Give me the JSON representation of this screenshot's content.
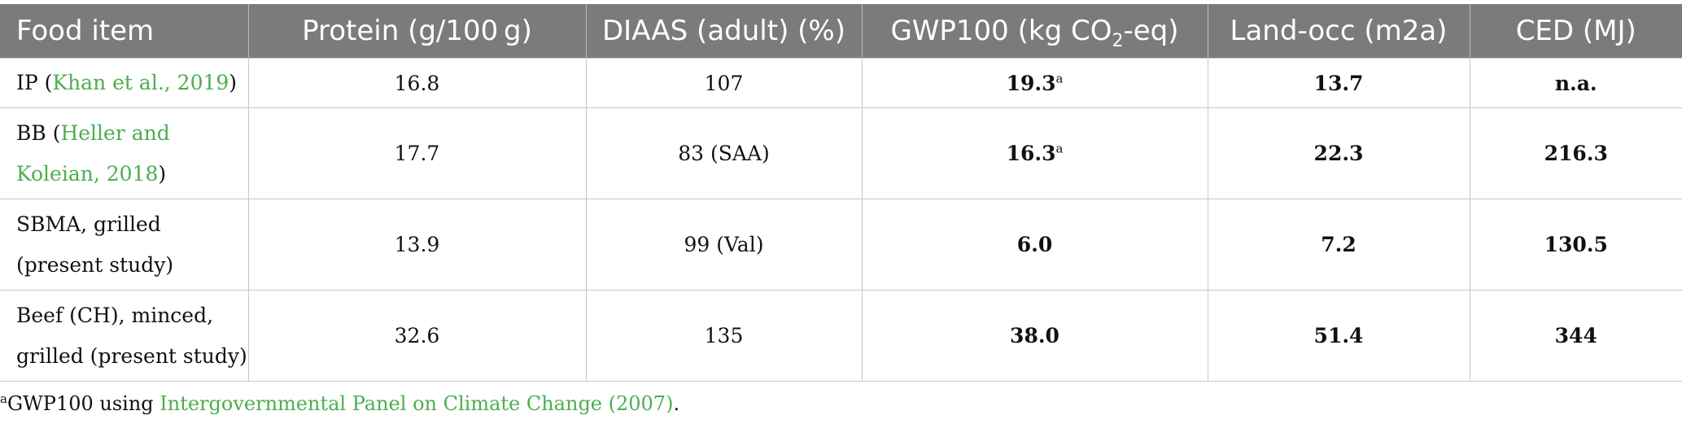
{
  "columns": {
    "food_item": "Food item",
    "protein": "Protein (g/100 g)",
    "diaas": "DIAAS (adult) (%)",
    "gwp_prefix": "GWP100 (kg CO",
    "gwp_sub": "2",
    "gwp_suffix": "-eq)",
    "land": "Land-occ (m2a)",
    "ced": "CED (MJ)"
  },
  "rows": [
    {
      "food_lines": [
        "IP (",
        "Khan et al., 2019",
        ")"
      ],
      "protein": "16.8",
      "diaas": "107",
      "gwp": "19.3",
      "gwp_note": "a",
      "land": "13.7",
      "ced": "n.a."
    },
    {
      "food_lines": [
        "BB (",
        "Heller and Koleian, 2018",
        ")"
      ],
      "protein": "17.7",
      "diaas": "83 (SAA)",
      "gwp": "16.3",
      "gwp_note": "a",
      "land": "22.3",
      "ced": "216.3"
    },
    {
      "food_line1": "SBMA, grilled",
      "food_line2": "(present study)",
      "protein": "13.9",
      "diaas": "99 (Val)",
      "gwp": "6.0",
      "land": "7.2",
      "ced": "130.5"
    },
    {
      "food_line1": "Beef (CH), minced,",
      "food_line2": "grilled (present study)",
      "protein": "32.6",
      "diaas": "135",
      "gwp": "38.0",
      "land": "51.4",
      "ced": "344"
    }
  ],
  "footnote": {
    "marker": "a",
    "text": "GWP100 using ",
    "link": "Intergovernmental Panel on Climate Change (2007)",
    "end": "."
  },
  "colors": {
    "header_bg": "#7b7b7b",
    "link": "#4cae4f"
  }
}
